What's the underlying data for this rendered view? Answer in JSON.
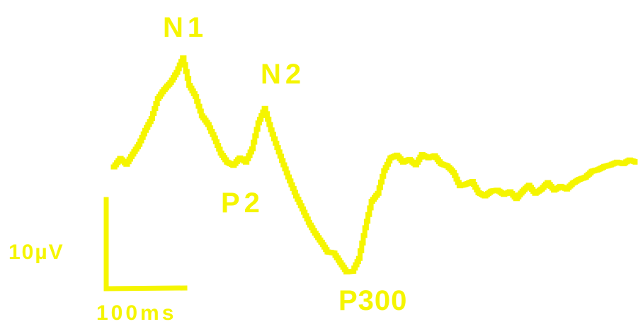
{
  "chart_data": {
    "type": "line",
    "title": "",
    "xlabel": "",
    "ylabel": "",
    "grid": false,
    "legend": "none",
    "color": "#f5f500",
    "background": "#ffffff",
    "x_unit": "ms",
    "y_unit": "µV",
    "y_direction": "negative-up",
    "series": [
      {
        "x": [
          0,
          8,
          16,
          24,
          32,
          40,
          48,
          56,
          64,
          72,
          80,
          88,
          96,
          104,
          112,
          120,
          128,
          136,
          144,
          152,
          160,
          168,
          176,
          184,
          192,
          200,
          208,
          216,
          224,
          232,
          240,
          248,
          256,
          264,
          272,
          280,
          288,
          296,
          304,
          312,
          320,
          328,
          336,
          344,
          352,
          360,
          368,
          376,
          384,
          392,
          400,
          408,
          416,
          424,
          432,
          440,
          448,
          456,
          464,
          472,
          480,
          488,
          496,
          504,
          512,
          520,
          528,
          536,
          544,
          552,
          560,
          568,
          576,
          584,
          592,
          600,
          608,
          616,
          624,
          632,
          640,
          648,
          656,
          664
        ],
        "values": [
          0,
          -1.6,
          -0.5,
          -2.4,
          -4.2,
          -6.8,
          -9.0,
          -12.7,
          -14.4,
          -15.7,
          -17.6,
          -20.3,
          -15.2,
          -13.1,
          -9.5,
          -7.9,
          -5.4,
          -2.6,
          -0.9,
          -0.3,
          -1.7,
          -0.9,
          -3.4,
          -8.2,
          -10.9,
          -6.9,
          -3.6,
          -0.4,
          2.6,
          5.4,
          7.8,
          10.3,
          12.3,
          14.0,
          15.8,
          16.0,
          17.8,
          19.5,
          19.4,
          17.0,
          11.3,
          6.4,
          4.9,
          0.7,
          -1.7,
          -2.2,
          -0.9,
          -1.4,
          -0.4,
          -2.3,
          -1.7,
          -2.1,
          -0.6,
          -0.2,
          1.0,
          3.5,
          3.2,
          2.7,
          4.8,
          5.4,
          4.5,
          4.3,
          5.1,
          4.6,
          5.9,
          4.5,
          3.4,
          4.9,
          4.1,
          2.9,
          4.3,
          3.6,
          4.1,
          3.0,
          2.3,
          1.9,
          0.8,
          0.5,
          -0.1,
          -0.4,
          -0.9,
          -0.6,
          -1.3,
          -0.9
        ]
      }
    ],
    "scale_bar": {
      "amplitude": 10,
      "amplitude_label": "10µV",
      "time": 100,
      "time_label": "100ms"
    },
    "annotations": [
      {
        "label": "N1",
        "x": 88,
        "value": -20.3
      },
      {
        "label": "P2",
        "x": 152,
        "value": -0.3
      },
      {
        "label": "N2",
        "x": 200,
        "value": -6.9
      },
      {
        "label": "P300",
        "x": 296,
        "value": 19.5
      }
    ]
  },
  "labels": {
    "n1": "N1",
    "p2": "P2",
    "n2": "N2",
    "p300": "P300",
    "amplitude": "10µV",
    "time": "100ms"
  }
}
